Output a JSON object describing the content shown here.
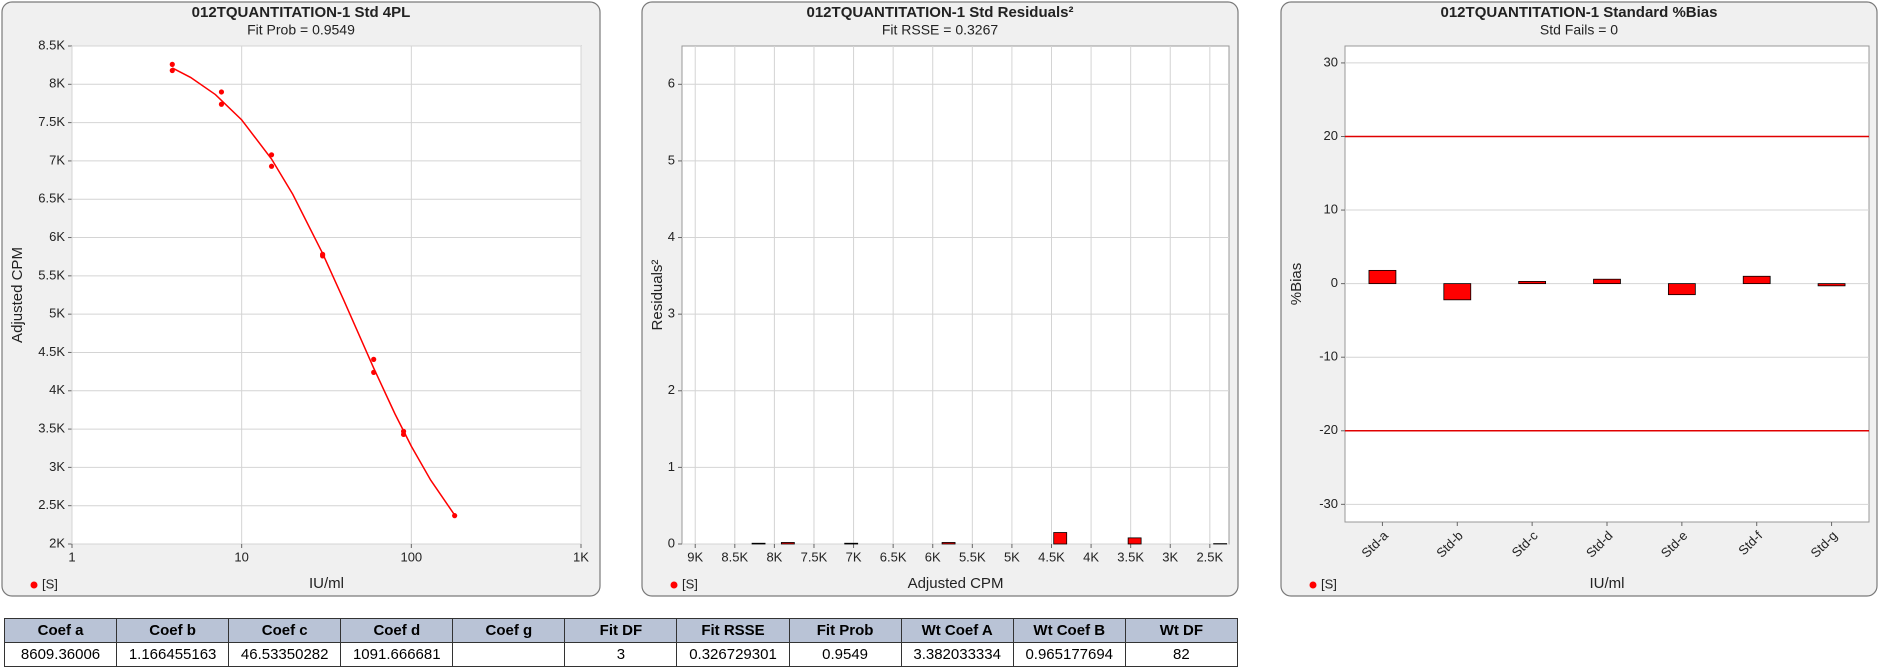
{
  "chart_data": [
    {
      "type": "scatter",
      "title": "012TQUANTITATION-1  Std 4PL",
      "subtitle": "Fit Prob = 0.9549",
      "xlabel": "IU/ml",
      "ylabel": "Adjusted CPM",
      "xscale": "log",
      "grid": true,
      "legend": "bottom-left",
      "xlim": [
        1,
        1000
      ],
      "xticks": [
        1,
        10,
        100,
        {
          "value": 1000,
          "label": "1K"
        }
      ],
      "ylim": [
        2000,
        8500
      ],
      "yticks": [
        {
          "value": 2000,
          "label": "2K"
        },
        {
          "value": 2500,
          "label": "2.5K"
        },
        {
          "value": 3000,
          "label": "3K"
        },
        {
          "value": 3500,
          "label": "3.5K"
        },
        {
          "value": 4000,
          "label": "4K"
        },
        {
          "value": 4500,
          "label": "4.5K"
        },
        {
          "value": 5000,
          "label": "5K"
        },
        {
          "value": 5500,
          "label": "5.5K"
        },
        {
          "value": 6000,
          "label": "6K"
        },
        {
          "value": 6500,
          "label": "6.5K"
        },
        {
          "value": 7000,
          "label": "7K"
        },
        {
          "value": 7500,
          "label": "7.5K"
        },
        {
          "value": 8000,
          "label": "8K"
        },
        {
          "value": 8500,
          "label": "8.5K"
        }
      ],
      "series": [
        {
          "name": "[S]",
          "type": "scatter",
          "color": "#ff0000",
          "x": [
            3.9,
            3.9,
            7.6,
            7.6,
            15,
            15,
            30,
            30,
            60,
            60,
            90,
            90,
            180
          ],
          "values": [
            8260,
            8180,
            7900,
            7740,
            7080,
            6930,
            5780,
            5760,
            4410,
            4240,
            3470,
            3430,
            2370
          ]
        },
        {
          "type": "line",
          "color": "#ff0000",
          "x": [
            3.9,
            5,
            7,
            10,
            15,
            20,
            30,
            40,
            60,
            80,
            100,
            130,
            180
          ],
          "values": [
            8214,
            8090,
            7866,
            7536,
            7025,
            6565,
            5792,
            5181,
            4297,
            3700,
            3276,
            2834,
            2378
          ]
        }
      ]
    },
    {
      "type": "bar",
      "title": "012TQUANTITATION-1 Std  Residuals²",
      "subtitle": "Fit RSSE = 0.3267",
      "xlabel": "Adjusted CPM",
      "ylabel": "Residuals²",
      "grid": true,
      "legend": "bottom-left",
      "xlim": [
        9167,
        2258
      ],
      "xticks": [
        {
          "value": 9000,
          "label": "9K"
        },
        {
          "value": 8500,
          "label": "8.5K"
        },
        {
          "value": 8000,
          "label": "8K"
        },
        {
          "value": 7500,
          "label": "7.5K"
        },
        {
          "value": 7000,
          "label": "7K"
        },
        {
          "value": 6500,
          "label": "6.5K"
        },
        {
          "value": 6000,
          "label": "6K"
        },
        {
          "value": 5500,
          "label": "5.5K"
        },
        {
          "value": 5000,
          "label": "5K"
        },
        {
          "value": 4500,
          "label": "4.5K"
        },
        {
          "value": 4000,
          "label": "4K"
        },
        {
          "value": 3500,
          "label": "3.5K"
        },
        {
          "value": 3000,
          "label": "3K"
        },
        {
          "value": 2500,
          "label": "2.5K"
        }
      ],
      "ylim": [
        0,
        6.5
      ],
      "yticks": [
        0,
        1,
        2,
        3,
        4,
        5,
        6
      ],
      "series": [
        {
          "name": "[S]",
          "type": "bar",
          "color": "#ff0000",
          "x": [
            8200,
            7830,
            7030,
            5800,
            4390,
            3450,
            2370
          ],
          "values": [
            0.01,
            0.02,
            0.01,
            0.02,
            0.15,
            0.08,
            0.005
          ]
        }
      ]
    },
    {
      "type": "bar",
      "title": "012TQUANTITATION-1 Standard %Bias",
      "subtitle": "Std Fails = 0",
      "xlabel": "IU/ml",
      "ylabel": "%Bias",
      "grid": true,
      "legend": "bottom-left",
      "categories": [
        "Std-a",
        "Std-b",
        "Std-c",
        "Std-d",
        "Std-e",
        "Std-f",
        "Std-g"
      ],
      "ylim": [
        -32.4,
        32.3
      ],
      "yticks": [
        -30,
        -20,
        -10,
        0,
        10,
        20,
        30
      ],
      "reference_lines": [
        {
          "value": 20,
          "color": "#e00000"
        },
        {
          "value": -20,
          "color": "#e00000"
        }
      ],
      "series": [
        {
          "name": "[S]",
          "type": "bar",
          "color": "#ff0000",
          "values": [
            1.8,
            -2.2,
            0.3,
            0.6,
            -1.5,
            1.0,
            -0.3
          ]
        }
      ]
    }
  ],
  "table": {
    "columns": [
      "Coef a",
      "Coef b",
      "Coef c",
      "Coef d",
      "Coef g",
      "Fit DF",
      "Fit RSSE",
      "Fit Prob",
      "Wt Coef A",
      "Wt Coef B",
      "Wt DF"
    ],
    "rows": [
      [
        "8609.36006",
        "1.166455163",
        "46.53350282",
        "1091.666681",
        null,
        "3",
        "0.326729301",
        "0.9549",
        "3.382033334",
        "0.965177694",
        "82"
      ]
    ]
  }
}
